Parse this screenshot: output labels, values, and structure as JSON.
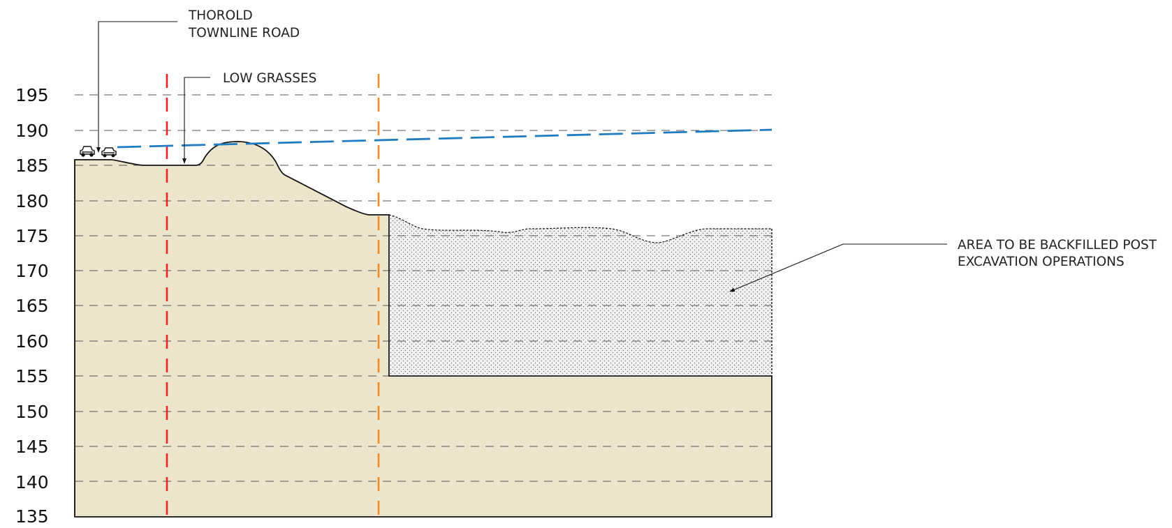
{
  "elevations": [
    "195",
    "190",
    "185",
    "180",
    "175",
    "170",
    "165",
    "160",
    "155",
    "150",
    "145",
    "140",
    "135"
  ],
  "callouts": {
    "road": {
      "line1": "THOROLD",
      "line2": "TOWNLINE ROAD"
    },
    "grasses": {
      "line1": "LOW GRASSES"
    },
    "backfill": {
      "line1": "AREA TO BE BACKFILLED POST",
      "line2": "EXCAVATION OPERATIONS"
    }
  },
  "colors": {
    "ground_fill": "#ede4cc",
    "backfill_fill": "#f2f2f2",
    "grid_line": "#555555",
    "water_table_line": "#1f7cc0",
    "red_boundary_line": "#e8242a",
    "orange_boundary_line": "#f58a1f",
    "outline": "#111111"
  }
}
